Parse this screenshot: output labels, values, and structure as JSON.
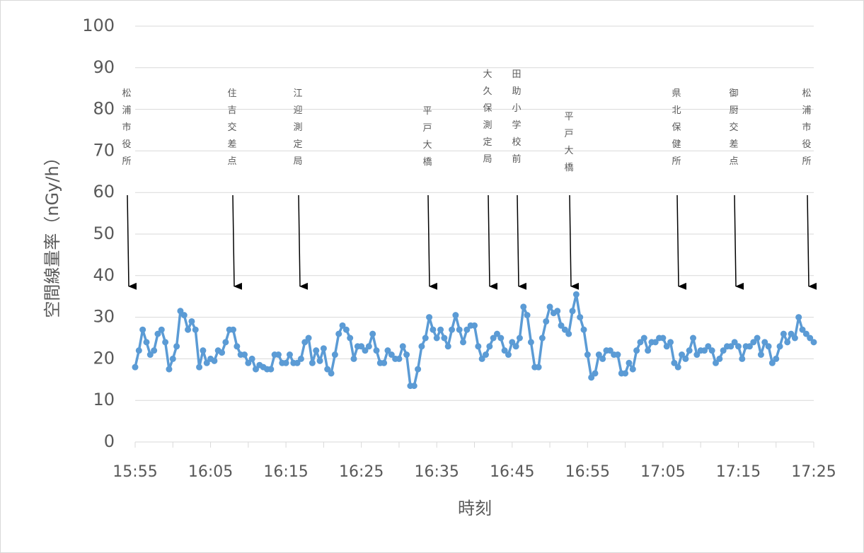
{
  "chart_data": {
    "type": "line",
    "y_label": "空間線量率（nGy/h）",
    "x_label": "時刻",
    "categories": [
      "15:55",
      null,
      null,
      null,
      null,
      null,
      null,
      null,
      null,
      null,
      null,
      null,
      null,
      null,
      null,
      null,
      null,
      null,
      null,
      null,
      "16:05",
      null,
      null,
      null,
      null,
      null,
      null,
      null,
      null,
      null,
      null,
      null,
      null,
      null,
      null,
      null,
      null,
      null,
      null,
      null,
      "16:15",
      null,
      null,
      null,
      null,
      null,
      null,
      null,
      null,
      null,
      null,
      null,
      null,
      null,
      null,
      null,
      null,
      null,
      null,
      null,
      "16:25",
      null,
      null,
      null,
      null,
      null,
      null,
      null,
      null,
      null,
      null,
      null,
      null,
      null,
      null,
      null,
      null,
      null,
      null,
      null,
      "16:35",
      null,
      null,
      null,
      null,
      null,
      null,
      null,
      null,
      null,
      null,
      null,
      null,
      null,
      null,
      null,
      null,
      null,
      null,
      null,
      "16:45",
      null,
      null,
      null,
      null,
      null,
      null,
      null,
      null,
      null,
      null,
      null,
      null,
      null,
      null,
      null,
      null,
      null,
      null,
      null,
      "16:55",
      null,
      null,
      null,
      null,
      null,
      null,
      null,
      null,
      null,
      null,
      null,
      null,
      null,
      null,
      null,
      null,
      null,
      null,
      null,
      "17:05",
      null,
      null,
      null,
      null,
      null,
      null,
      null,
      null,
      null,
      null,
      null,
      null,
      null,
      null,
      null,
      null,
      null,
      null,
      null,
      "17:15",
      null,
      null,
      null,
      null,
      null,
      null,
      null,
      null,
      null,
      null,
      null,
      null,
      null,
      null,
      null,
      null,
      null,
      null,
      null,
      "17:25"
    ],
    "values": [
      18,
      22,
      27,
      24,
      21,
      22,
      26,
      27,
      24,
      17.5,
      20,
      23,
      31.5,
      30.5,
      27,
      29,
      27,
      18,
      22,
      19,
      20,
      19.5,
      22,
      21.5,
      24,
      27,
      27,
      23,
      21,
      21,
      19,
      20,
      17.5,
      18.5,
      18,
      17.5,
      17.5,
      21,
      21,
      19,
      19,
      21,
      19,
      19,
      20,
      24,
      25,
      19,
      22,
      19.5,
      22.5,
      17.5,
      16.5,
      21,
      26,
      28,
      27,
      25,
      20,
      23,
      23,
      22,
      23,
      26,
      22,
      19,
      19,
      22,
      21,
      20,
      20,
      23,
      21,
      13.5,
      13.5,
      17.5,
      23,
      25,
      30,
      27,
      25,
      27,
      25,
      23,
      27,
      30.5,
      27,
      24,
      27,
      28,
      28,
      23,
      20,
      21,
      23,
      25,
      26,
      25,
      22,
      21,
      24,
      23,
      25,
      32.5,
      30.5,
      24,
      18,
      18,
      25,
      29,
      32.5,
      31,
      31.5,
      28,
      27,
      26,
      31.5,
      35.5,
      30,
      27,
      21,
      15.5,
      16.5,
      21,
      20,
      22,
      22,
      21,
      21,
      16.5,
      16.5,
      19,
      17.5,
      22,
      24,
      25,
      22,
      24,
      24,
      25,
      25,
      23,
      24,
      19,
      18,
      21,
      20,
      22,
      25,
      21,
      22,
      22,
      23,
      22,
      19,
      20,
      22,
      23,
      23,
      24,
      23,
      20,
      23,
      23,
      24,
      25,
      21,
      24,
      23,
      19,
      20,
      23,
      26,
      24,
      26,
      25,
      30,
      27,
      26,
      25,
      24
    ],
    "color": "#5b9bd5",
    "ylim": [
      0,
      100
    ],
    "yticks": [
      0,
      10,
      20,
      30,
      40,
      50,
      60,
      70,
      80,
      90,
      100
    ],
    "grid": true,
    "annotations": [
      "松浦市役所",
      "住吉交差点",
      "江迎測定局",
      "平戸大橋",
      "大久保測定局",
      "田助小学校前",
      "平戸大橋",
      "県北保健所",
      "御厨交差点",
      "松浦市役所"
    ]
  }
}
